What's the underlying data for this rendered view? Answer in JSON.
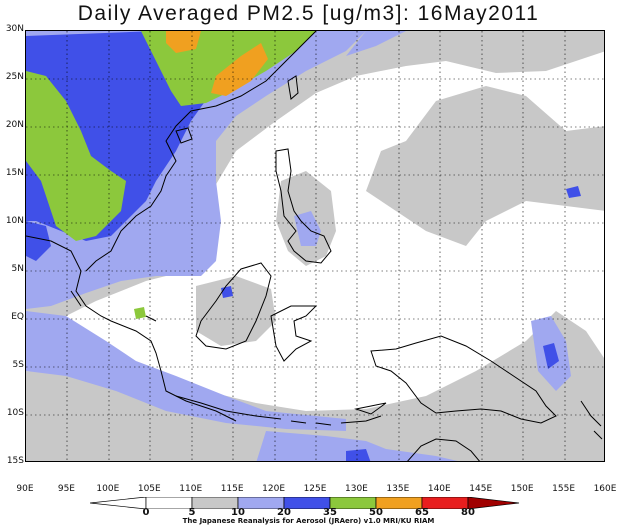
{
  "title": "Daily Averaged PM2.5 [ug/m3]: 16May2011",
  "credit": "The Japanese Reanalysis for Aerosol (JRAero) v1.0 MRI/KU RIAM",
  "lat_labels": [
    "30N",
    "25N",
    "20N",
    "15N",
    "10N",
    "5N",
    "EQ",
    "5S",
    "10S",
    "15S"
  ],
  "lon_labels": [
    "90E",
    "95E",
    "100E",
    "105E",
    "110E",
    "115E",
    "120E",
    "125E",
    "130E",
    "135E",
    "140E",
    "145E",
    "150E",
    "155E",
    "160E"
  ],
  "colorbar": {
    "ticks": [
      "0",
      "5",
      "10",
      "20",
      "35",
      "50",
      "65",
      "80"
    ],
    "colors": [
      "#ffffff",
      "#ffffff",
      "#c8c8c8",
      "#a0a8f0",
      "#4050e8",
      "#8cc83c",
      "#f0a020",
      "#e81e1e",
      "#a00000"
    ]
  }
}
